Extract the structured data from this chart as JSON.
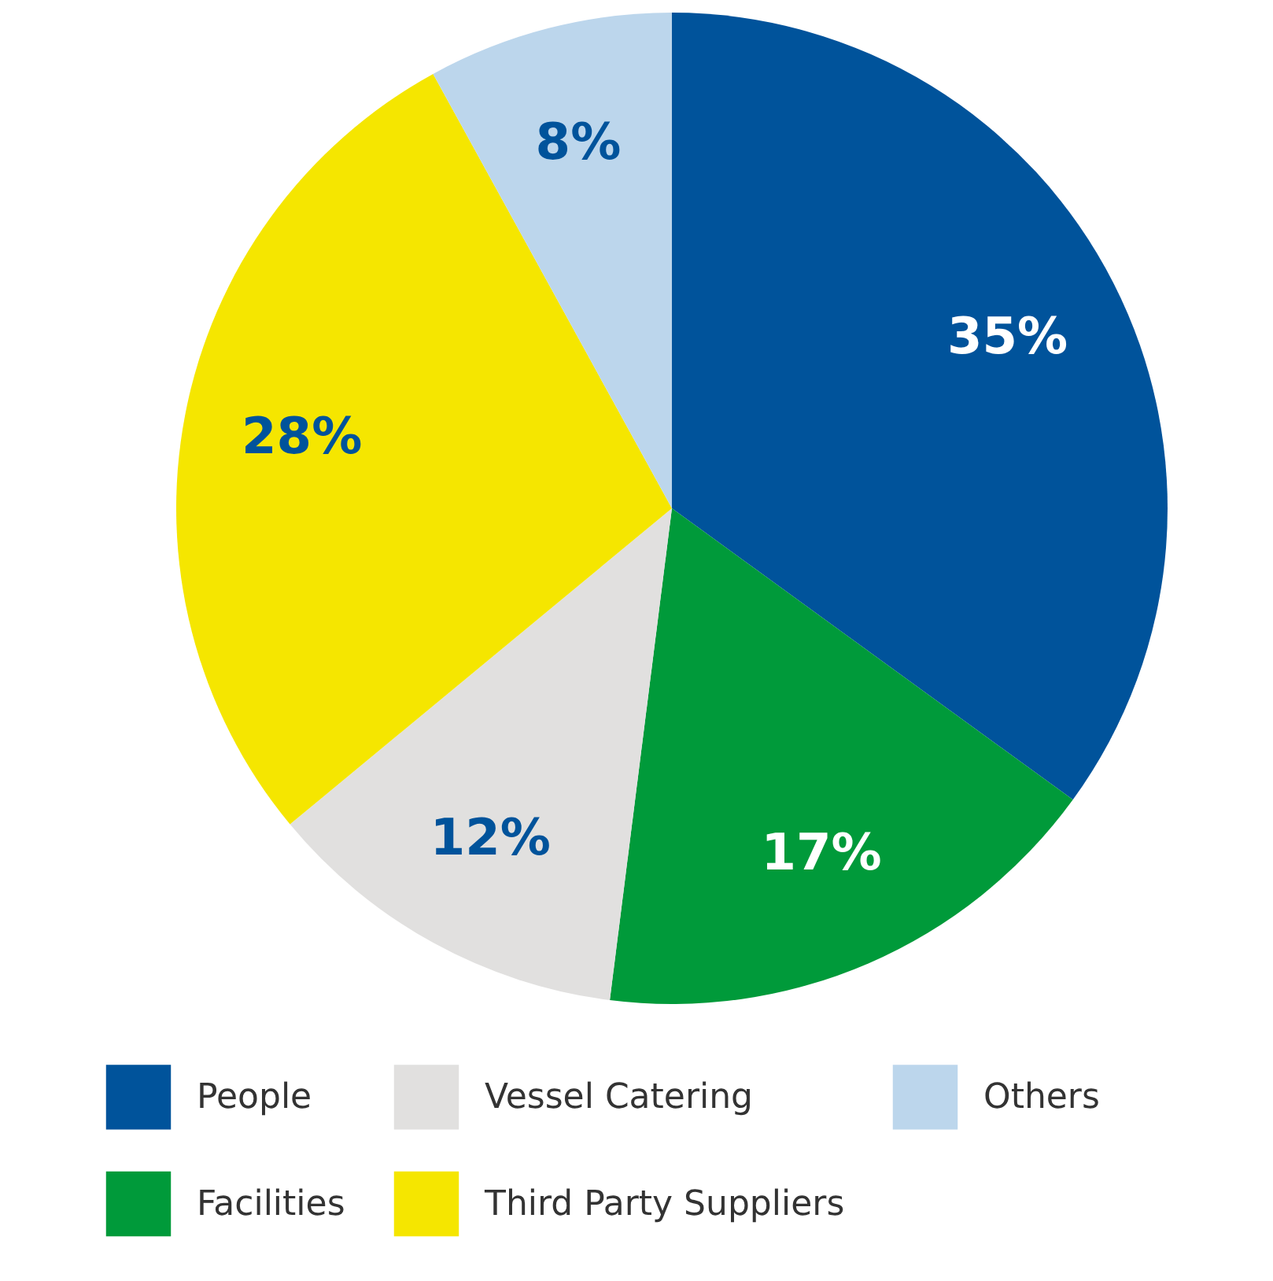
{
  "chart_data": {
    "type": "pie",
    "categories": [
      "People",
      "Facilities",
      "Vessel Catering",
      "Third Party Suppliers",
      "Others"
    ],
    "values": [
      35,
      17,
      12,
      28,
      8
    ],
    "value_labels": [
      "35%",
      "17%",
      "12%",
      "28%",
      "8%"
    ],
    "colors": [
      "#00539b",
      "#009a3a",
      "#e1e0df",
      "#f5e600",
      "#bcd6ec"
    ],
    "legend": "bottom"
  }
}
